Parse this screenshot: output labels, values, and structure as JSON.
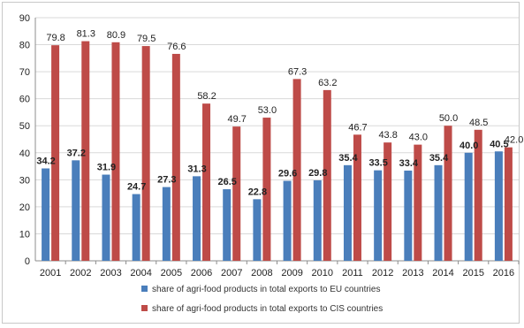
{
  "chart_data": {
    "type": "bar",
    "title": "",
    "xlabel": "",
    "ylabel": "",
    "ylim": [
      0,
      90
    ],
    "yticks": [
      0,
      10,
      20,
      30,
      40,
      50,
      60,
      70,
      80,
      90
    ],
    "grid": true,
    "legend_position": "bottom",
    "categories": [
      "2001",
      "2002",
      "2003",
      "2004",
      "2005",
      "2006",
      "2007",
      "2008",
      "2009",
      "2010",
      "2011",
      "2012",
      "2013",
      "2014",
      "2015",
      "2016"
    ],
    "series": [
      {
        "name": "share of agri-food products in total exports to EU countries",
        "color": "#4a7ebb",
        "values": [
          34.2,
          37.2,
          31.9,
          24.7,
          27.3,
          31.3,
          26.5,
          22.8,
          29.6,
          29.8,
          35.4,
          33.5,
          33.4,
          35.4,
          40.0,
          40.5
        ],
        "labels": [
          "34.2",
          "37.2",
          "31.9",
          "24.7",
          "27.3",
          "31.3",
          "26.5",
          "22.8",
          "29.6",
          "29.8",
          "35.4",
          "33.5",
          "33.4",
          "35.4",
          "40.0",
          "40.5"
        ]
      },
      {
        "name": "share of agri-food products in total exports to CIS countries",
        "color": "#be4b48",
        "values": [
          79.8,
          81.3,
          80.9,
          79.5,
          76.6,
          58.2,
          49.7,
          53.0,
          67.3,
          63.2,
          46.7,
          43.8,
          43.0,
          50.0,
          48.5,
          42.0
        ],
        "labels": [
          "79.8",
          "81.3",
          "80.9",
          "79.5",
          "76.6",
          "58.2",
          "49.7",
          "53.0",
          "67.3",
          "63.2",
          "46.7",
          "43.8",
          "43.0",
          "50.0",
          "48.5",
          "42.0"
        ]
      }
    ]
  }
}
